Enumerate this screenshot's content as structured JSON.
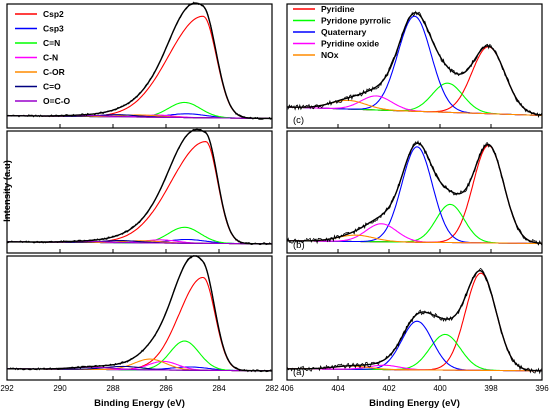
{
  "figure": {
    "ylabel": "Intensity (a.u)"
  },
  "chart_data": [
    {
      "type": "line",
      "panel": "C1s",
      "xlabel": "Binding Energy (eV)",
      "xlim": [
        292,
        282
      ],
      "x_reversed": true,
      "xticks": [
        292,
        290,
        288,
        286,
        284,
        282
      ],
      "legend": {
        "placement": "top-left",
        "entries": [
          {
            "name": "Csp2",
            "color": "#ff0000"
          },
          {
            "name": "Csp3",
            "color": "#0000ff"
          },
          {
            "name": "C=N",
            "color": "#00ff00"
          },
          {
            "name": "C-N",
            "color": "#ff00ff"
          },
          {
            "name": "C-OR",
            "color": "#ff8c00"
          },
          {
            "name": "C=O",
            "color": "#000080"
          },
          {
            "name": "O=C-O",
            "color": "#9900cc"
          }
        ]
      },
      "stack": [
        {
          "label": "",
          "baseline": 0.04,
          "components": [
            {
              "name": "Csp2",
              "color": "#ff0000",
              "center": 284.6,
              "height": 0.94,
              "sigmaLow": 0.5,
              "sigmaHigh": 1.3
            },
            {
              "name": "Csp3",
              "color": "#0000ff",
              "center": 285.2,
              "height": 0.035,
              "sigmaLow": 0.7,
              "sigmaHigh": 0.7
            },
            {
              "name": "C=N",
              "color": "#00ff00",
              "center": 285.3,
              "height": 0.14,
              "sigmaLow": 0.6,
              "sigmaHigh": 0.6
            },
            {
              "name": "C-N",
              "color": "#ff00ff",
              "center": 286.3,
              "height": 0.02,
              "sigmaLow": 0.6,
              "sigmaHigh": 0.6
            },
            {
              "name": "C-OR",
              "color": "#ff8c00",
              "center": 287.0,
              "height": 0.02,
              "sigmaLow": 0.7,
              "sigmaHigh": 0.7
            },
            {
              "name": "C=O",
              "color": "#000080",
              "center": 287.8,
              "height": 0.02,
              "sigmaLow": 0.7,
              "sigmaHigh": 0.7
            },
            {
              "name": "O=C-O",
              "color": "#9900cc",
              "center": 289.0,
              "height": 0.01,
              "sigmaLow": 0.8,
              "sigmaHigh": 0.8
            }
          ]
        },
        {
          "label": "",
          "baseline": 0.03,
          "components": [
            {
              "name": "Csp2",
              "color": "#ff0000",
              "center": 284.5,
              "height": 0.96,
              "sigmaLow": 0.45,
              "sigmaHigh": 1.3
            },
            {
              "name": "Csp3",
              "color": "#0000ff",
              "center": 285.2,
              "height": 0.035,
              "sigmaLow": 0.7,
              "sigmaHigh": 0.7
            },
            {
              "name": "C=N",
              "color": "#00ff00",
              "center": 285.3,
              "height": 0.15,
              "sigmaLow": 0.6,
              "sigmaHigh": 0.6
            },
            {
              "name": "C-N",
              "color": "#ff00ff",
              "center": 286.2,
              "height": 0.03,
              "sigmaLow": 0.6,
              "sigmaHigh": 0.6
            },
            {
              "name": "C-OR",
              "color": "#ff8c00",
              "center": 286.9,
              "height": 0.02,
              "sigmaLow": 0.7,
              "sigmaHigh": 0.7
            },
            {
              "name": "C=O",
              "color": "#000080",
              "center": 287.7,
              "height": 0.02,
              "sigmaLow": 0.7,
              "sigmaHigh": 0.7
            },
            {
              "name": "O=C-O",
              "color": "#9900cc",
              "center": 289.0,
              "height": 0.01,
              "sigmaLow": 0.8,
              "sigmaHigh": 0.8
            }
          ]
        },
        {
          "label": "",
          "baseline": 0.03,
          "components": [
            {
              "name": "Csp2",
              "color": "#ff0000",
              "center": 284.6,
              "height": 0.86,
              "sigmaLow": 0.45,
              "sigmaHigh": 0.9
            },
            {
              "name": "Csp3",
              "color": "#0000ff",
              "center": 285.1,
              "height": 0.03,
              "sigmaLow": 0.7,
              "sigmaHigh": 0.7
            },
            {
              "name": "C=N",
              "color": "#00ff00",
              "center": 285.3,
              "height": 0.27,
              "sigmaLow": 0.55,
              "sigmaHigh": 0.55
            },
            {
              "name": "C-N",
              "color": "#ff00ff",
              "center": 286.1,
              "height": 0.08,
              "sigmaLow": 0.55,
              "sigmaHigh": 0.55
            },
            {
              "name": "C-OR",
              "color": "#ff8c00",
              "center": 286.6,
              "height": 0.1,
              "sigmaLow": 0.6,
              "sigmaHigh": 0.6
            },
            {
              "name": "C=O",
              "color": "#000080",
              "center": 287.6,
              "height": 0.03,
              "sigmaLow": 0.7,
              "sigmaHigh": 0.7
            },
            {
              "name": "O=C-O",
              "color": "#9900cc",
              "center": 288.8,
              "height": 0.02,
              "sigmaLow": 0.8,
              "sigmaHigh": 0.8
            }
          ]
        }
      ]
    },
    {
      "type": "line",
      "panel": "N1s",
      "xlabel": "Binding Energy (eV)",
      "xlim": [
        406,
        396
      ],
      "x_reversed": true,
      "xticks": [
        406,
        404,
        402,
        400,
        398,
        396
      ],
      "legend": {
        "placement": "top-left",
        "entries": [
          {
            "name": "Pyridine",
            "color": "#ff0000"
          },
          {
            "name": "Pyridone pyrrolic",
            "color": "#00ff00"
          },
          {
            "name": "Quaternary",
            "color": "#0000ff"
          },
          {
            "name": "Pyridine oxide",
            "color": "#ff00ff"
          },
          {
            "name": "NOx",
            "color": "#ff8c00"
          }
        ]
      },
      "stack": [
        {
          "label": "(c)",
          "baseline": 0.12,
          "components": [
            {
              "name": "Pyridine",
              "color": "#ff0000",
              "center": 398.1,
              "height": 0.62,
              "sigmaLow": 0.65,
              "sigmaHigh": 0.65
            },
            {
              "name": "Pyridone pyrrolic",
              "color": "#00ff00",
              "center": 399.7,
              "height": 0.27,
              "sigmaLow": 0.6,
              "sigmaHigh": 0.6
            },
            {
              "name": "Quaternary",
              "color": "#0000ff",
              "center": 401.0,
              "height": 0.88,
              "sigmaLow": 0.65,
              "sigmaHigh": 0.65
            },
            {
              "name": "Pyridine oxide",
              "color": "#ff00ff",
              "center": 402.5,
              "height": 0.13,
              "sigmaLow": 0.6,
              "sigmaHigh": 0.6
            },
            {
              "name": "NOx",
              "color": "#ff8c00",
              "center": 403.6,
              "height": 0.08,
              "sigmaLow": 0.7,
              "sigmaHigh": 0.7
            }
          ]
        },
        {
          "label": "(b)",
          "baseline": 0.04,
          "components": [
            {
              "name": "Pyridine",
              "color": "#ff0000",
              "center": 398.1,
              "height": 0.92,
              "sigmaLow": 0.6,
              "sigmaHigh": 0.6
            },
            {
              "name": "Pyridone pyrrolic",
              "color": "#00ff00",
              "center": 399.6,
              "height": 0.36,
              "sigmaLow": 0.55,
              "sigmaHigh": 0.55
            },
            {
              "name": "Quaternary",
              "color": "#0000ff",
              "center": 400.9,
              "height": 0.9,
              "sigmaLow": 0.6,
              "sigmaHigh": 0.6
            },
            {
              "name": "Pyridine oxide",
              "color": "#ff00ff",
              "center": 402.3,
              "height": 0.17,
              "sigmaLow": 0.6,
              "sigmaHigh": 0.6
            },
            {
              "name": "NOx",
              "color": "#ff8c00",
              "center": 403.3,
              "height": 0.06,
              "sigmaLow": 0.7,
              "sigmaHigh": 0.7
            }
          ]
        },
        {
          "label": "(a)",
          "baseline": 0.03,
          "components": [
            {
              "name": "Pyridine",
              "color": "#ff0000",
              "center": 398.4,
              "height": 0.9,
              "sigmaLow": 0.6,
              "sigmaHigh": 0.6
            },
            {
              "name": "Pyridone pyrrolic",
              "color": "#00ff00",
              "center": 399.8,
              "height": 0.33,
              "sigmaLow": 0.6,
              "sigmaHigh": 0.6
            },
            {
              "name": "Quaternary",
              "color": "#0000ff",
              "center": 400.9,
              "height": 0.45,
              "sigmaLow": 0.6,
              "sigmaHigh": 0.6
            },
            {
              "name": "Pyridine oxide",
              "color": "#ff00ff",
              "center": 402.2,
              "height": 0.04,
              "sigmaLow": 0.6,
              "sigmaHigh": 0.6
            },
            {
              "name": "NOx",
              "color": "#ff8c00",
              "center": 403.5,
              "height": 0.03,
              "sigmaLow": 0.7,
              "sigmaHigh": 0.7
            }
          ]
        }
      ]
    }
  ]
}
